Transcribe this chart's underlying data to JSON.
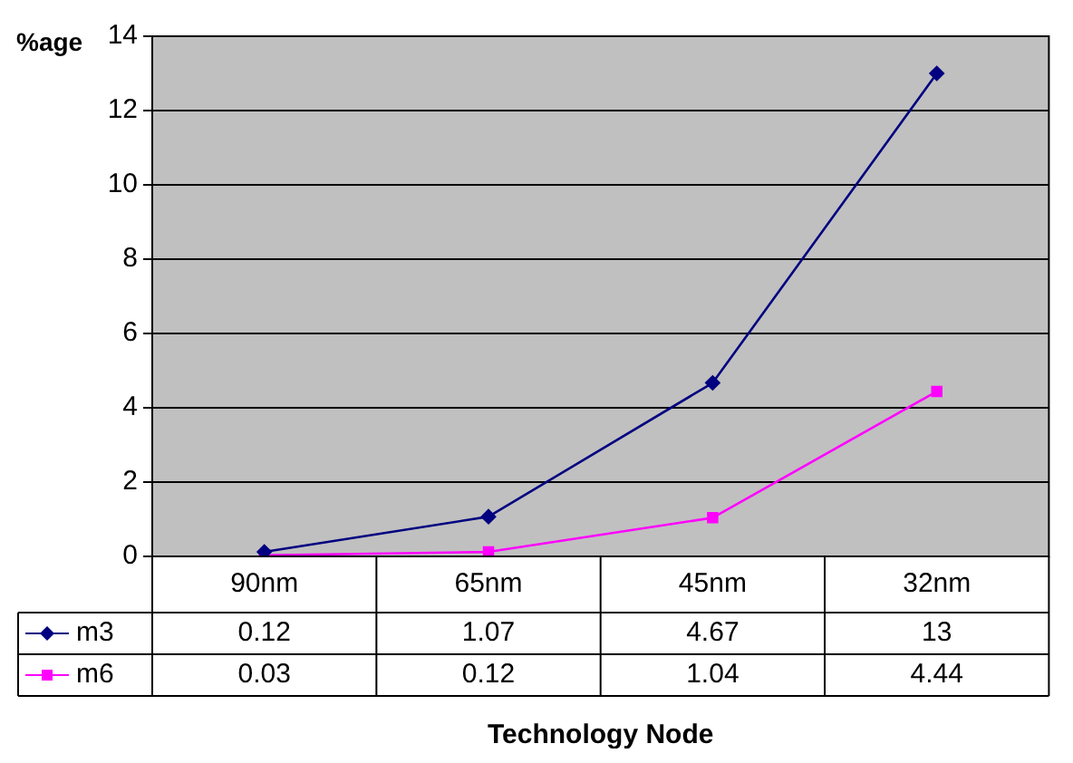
{
  "chart_data": {
    "type": "line",
    "ylabel": "%age",
    "xlabel": "Technology Node",
    "categories": [
      "90nm",
      "65nm",
      "45nm",
      "32nm"
    ],
    "series": [
      {
        "name": "m3",
        "color": "#000080",
        "marker": "diamond",
        "values": [
          0.12,
          1.07,
          4.67,
          13
        ]
      },
      {
        "name": "m6",
        "color": "#ff00ff",
        "marker": "square",
        "values": [
          0.03,
          0.12,
          1.04,
          4.44
        ]
      }
    ],
    "ylim": [
      0,
      14
    ],
    "yticks": [
      0,
      2,
      4,
      6,
      8,
      10,
      12,
      14
    ],
    "grid": "y",
    "legend": "bottom",
    "data_labels": true
  }
}
